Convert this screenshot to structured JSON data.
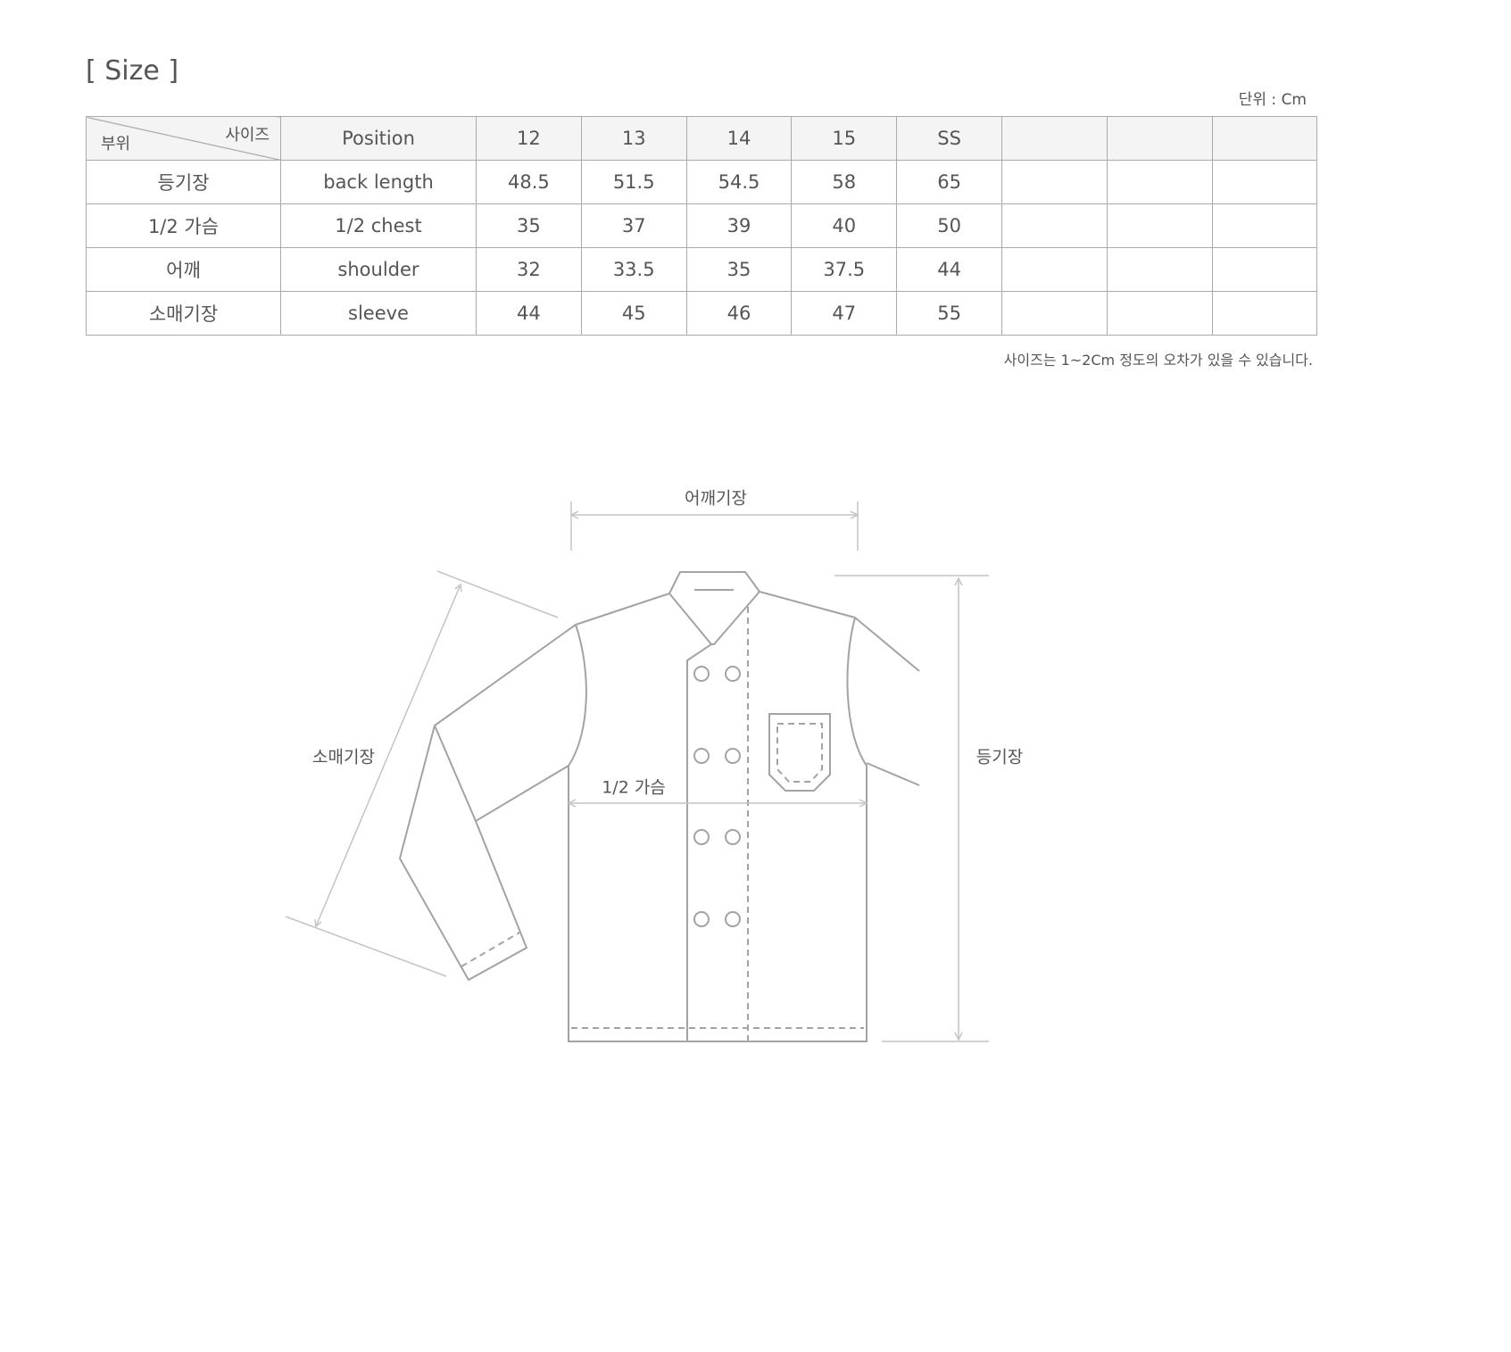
{
  "title": "[ Size ]",
  "unit": "단위 : Cm",
  "note": "사이즈는 1~2Cm 정도의 오차가 있을 수 있습니다.",
  "table": {
    "corner_top": "사이즈",
    "corner_bottom": "부위",
    "headers": [
      "Position",
      "12",
      "13",
      "14",
      "15",
      "SS",
      "",
      "",
      ""
    ],
    "rows": [
      [
        "등기장",
        "back length",
        "48.5",
        "51.5",
        "54.5",
        "58",
        "65",
        "",
        "",
        ""
      ],
      [
        "1/2 가슴",
        "1/2 chest",
        "35",
        "37",
        "39",
        "40",
        "50",
        "",
        "",
        ""
      ],
      [
        "어깨",
        "shoulder",
        "32",
        "33.5",
        "35",
        "37.5",
        "44",
        "",
        "",
        ""
      ],
      [
        "소매기장",
        "sleeve",
        "44",
        "45",
        "46",
        "47",
        "55",
        "",
        "",
        ""
      ]
    ]
  },
  "diagram": {
    "shoulder_label": "어깨기장",
    "chest_label": "1/2 가슴",
    "sleeve_label": "소매기장",
    "back_label": "등기장",
    "line_color": "#a3a3a3"
  }
}
